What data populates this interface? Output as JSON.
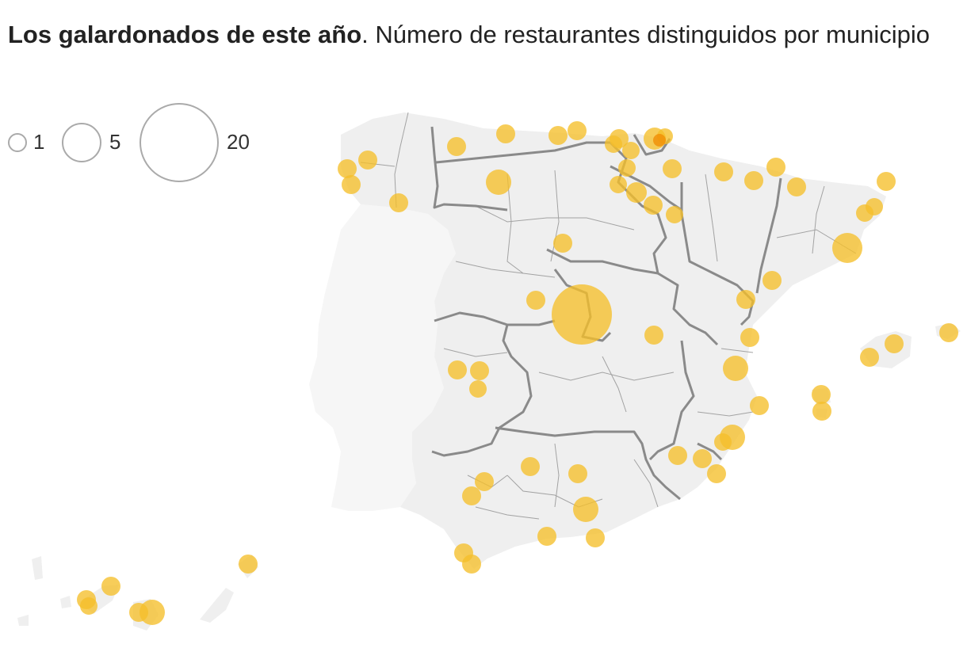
{
  "title": {
    "bold": "Los galardonados de este año",
    "rest": ". Número de restaurantes distinguidos por municipio"
  },
  "legend": {
    "items": [
      {
        "label": "1",
        "value": 1
      },
      {
        "label": "5",
        "value": 5
      },
      {
        "label": "20",
        "value": 20
      }
    ]
  },
  "colors": {
    "bubble": "#f5bf2a",
    "bubble_dark": "#f08a00",
    "land": "#efefef",
    "portugal": "#f6f6f6",
    "region_border": "#8a8a8a",
    "province_border": "#9a9a9a"
  }
}
